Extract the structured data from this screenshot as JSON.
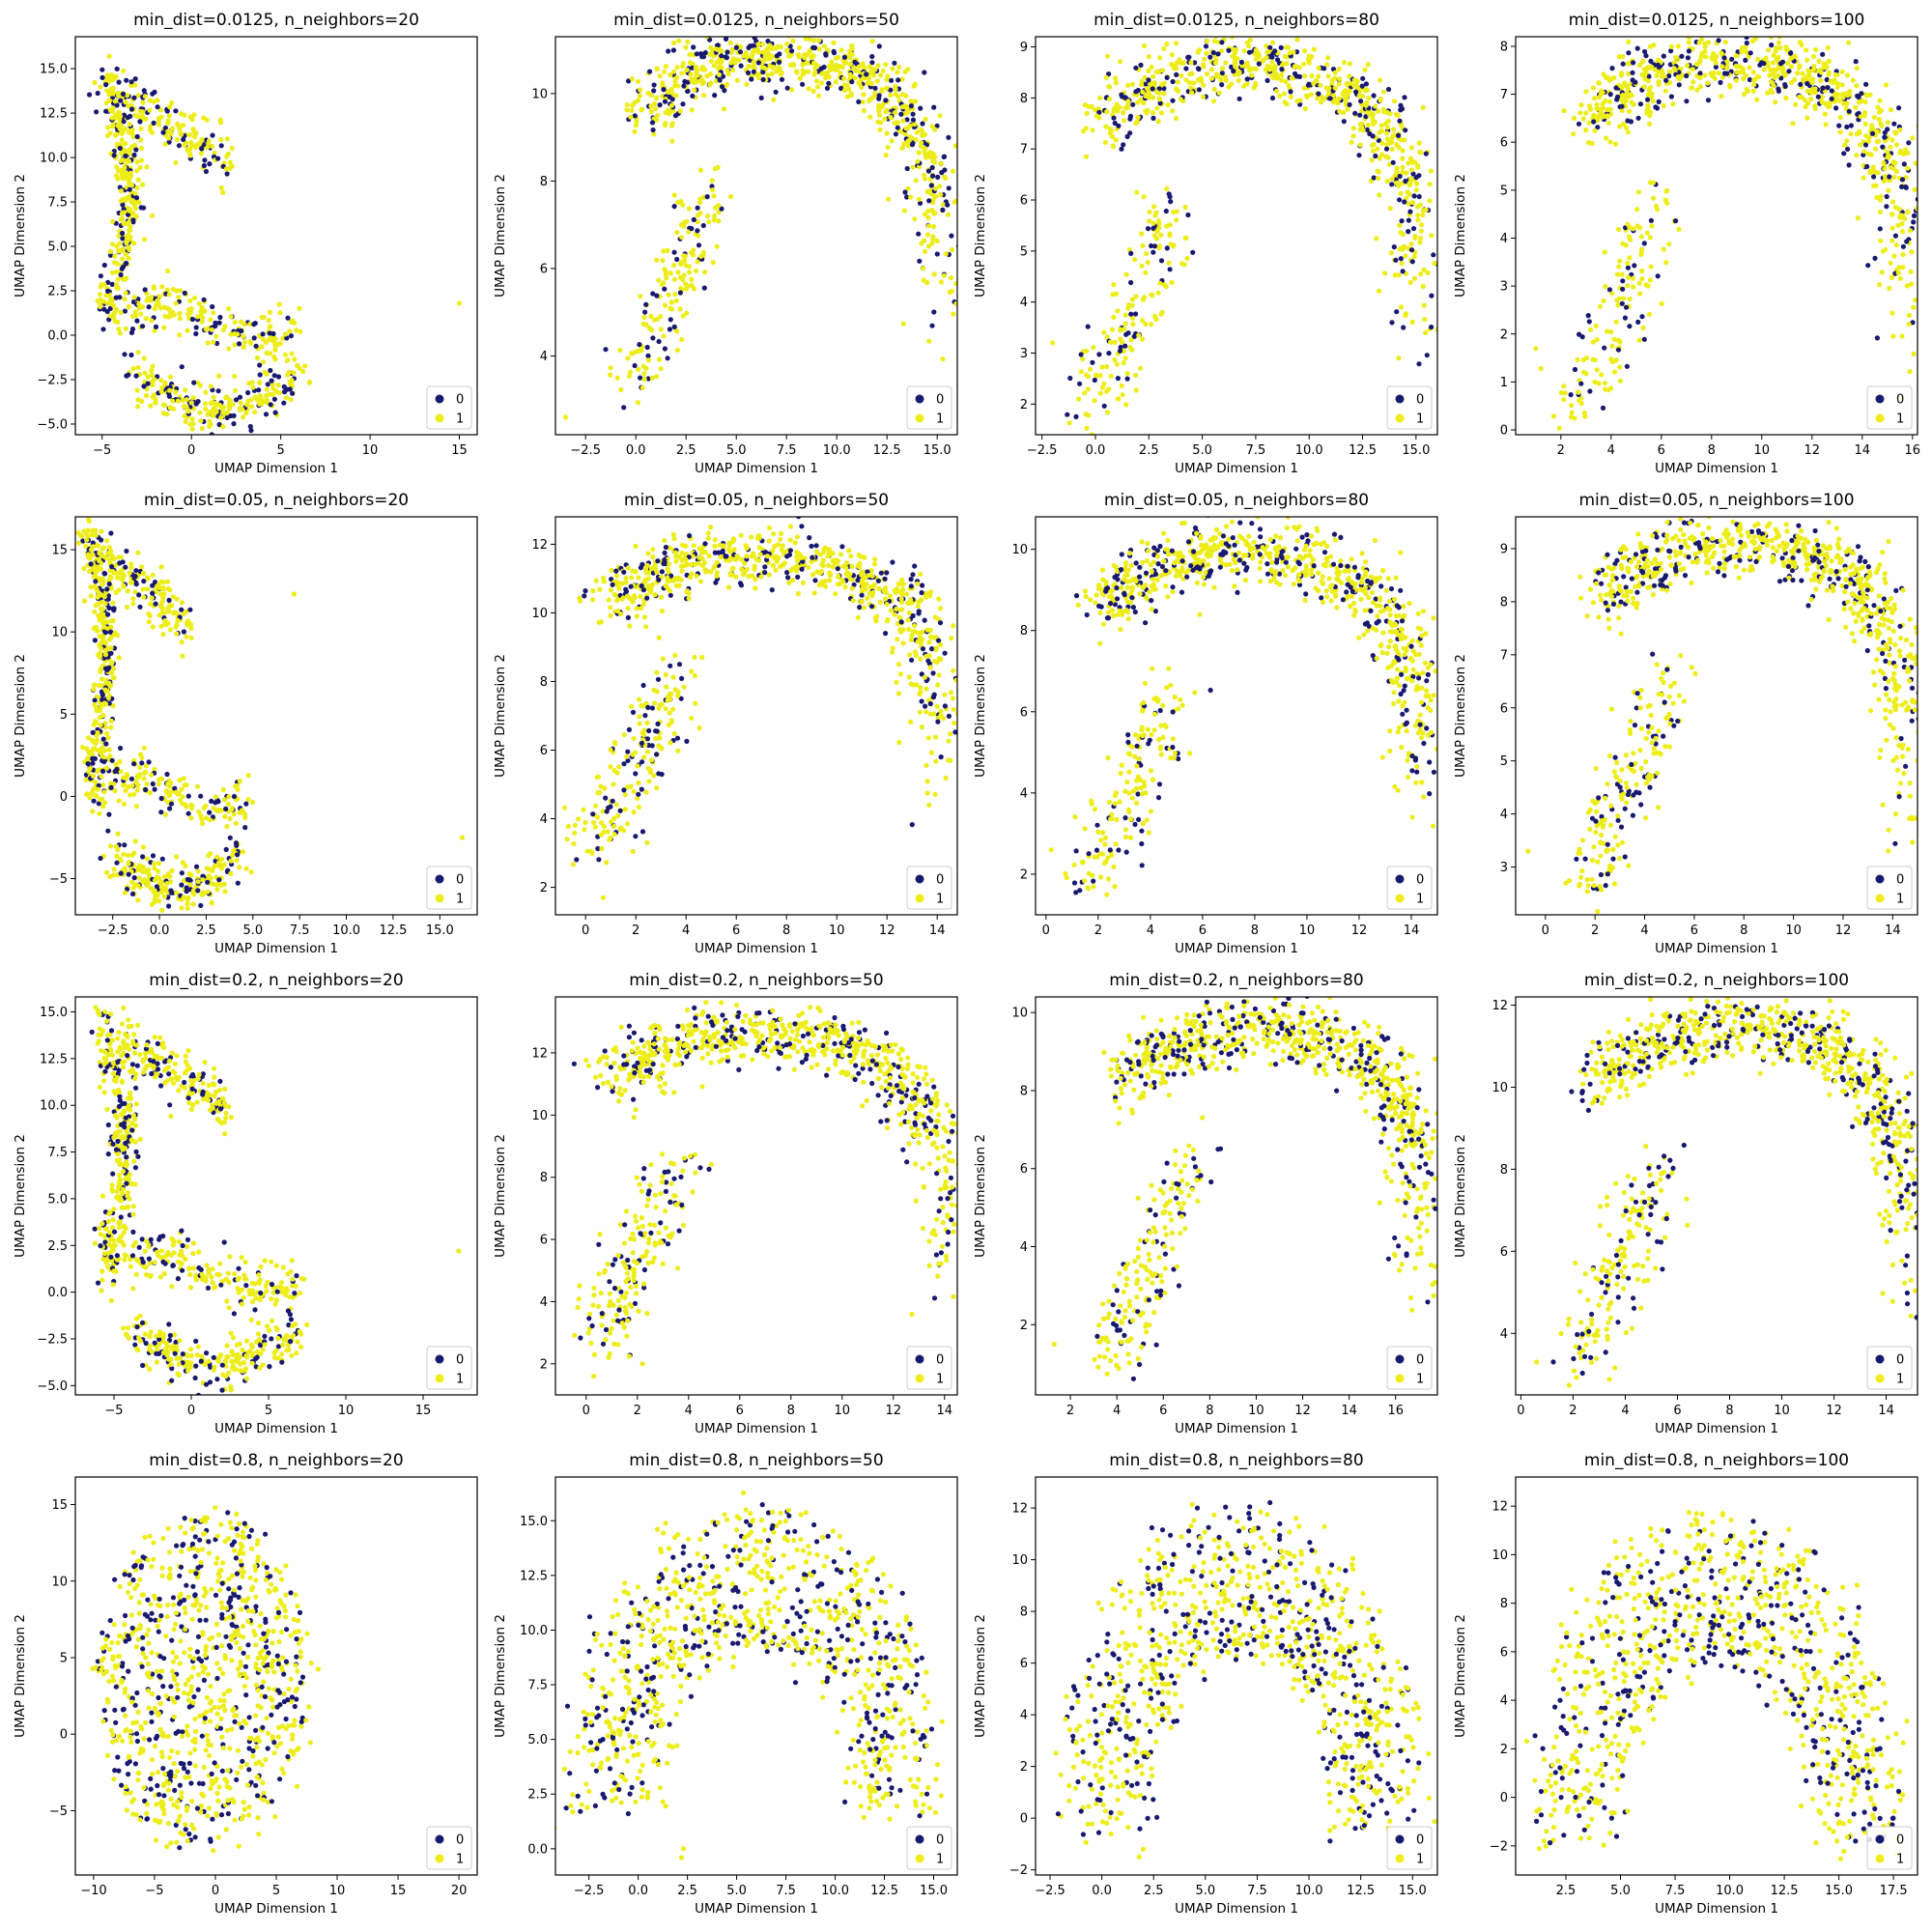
{
  "colors": {
    "class0": "#191970",
    "class1": "#eded1a"
  },
  "chart_data": [
    {
      "type": "scatter",
      "title": "min_dist=0.0125, n_neighbors=20",
      "xlabel": "UMAP Dimension 1",
      "ylabel": "UMAP Dimension 2",
      "xlim": [
        -6.5,
        16.0
      ],
      "ylim": [
        -5.6,
        16.8
      ],
      "xticks": [
        -5,
        0,
        5,
        10,
        15
      ],
      "yticks": [
        -5.0,
        -2.5,
        0.0,
        2.5,
        5.0,
        7.5,
        10.0,
        12.5,
        15.0
      ],
      "xtick_labels": [
        "−5",
        "0",
        "5",
        "10",
        "15"
      ],
      "ytick_labels": [
        "−5.0",
        "−2.5",
        "0.0",
        "2.5",
        "5.0",
        "7.5",
        "10.0",
        "12.5",
        "15.0"
      ],
      "legend": {
        "position": "lower right",
        "entries": [
          "0",
          "1"
        ]
      },
      "shape": {
        "kind": "c",
        "params": [
          -5,
          6,
          -4.5,
          14.5
        ]
      },
      "outliers": [
        [
          15.0,
          1.8
        ],
        [
          -4.6,
          15.7
        ]
      ]
    },
    {
      "type": "scatter",
      "title": "min_dist=0.0125, n_neighbors=50",
      "xlabel": "UMAP Dimension 1",
      "ylabel": "UMAP Dimension 2",
      "xlim": [
        -4.0,
        16.0
      ],
      "ylim": [
        2.2,
        11.3
      ],
      "xticks": [
        -2.5,
        0.0,
        2.5,
        5.0,
        7.5,
        10.0,
        12.5,
        15.0
      ],
      "yticks": [
        4,
        6,
        8,
        10
      ],
      "xtick_labels": [
        "−2.5",
        "0.0",
        "2.5",
        "5.0",
        "7.5",
        "10.0",
        "12.5",
        "15.0"
      ],
      "ytick_labels": [
        "4",
        "6",
        "8",
        "10"
      ],
      "legend": {
        "position": "lower right",
        "entries": [
          "0",
          "1"
        ]
      },
      "shape": {
        "kind": "arch",
        "params": [
          -1,
          15,
          3,
          11
        ]
      },
      "outliers": [
        [
          -3.5,
          2.6
        ]
      ]
    },
    {
      "type": "scatter",
      "title": "min_dist=0.0125, n_neighbors=80",
      "xlabel": "UMAP Dimension 1",
      "ylabel": "UMAP Dimension 2",
      "xlim": [
        -2.8,
        16.0
      ],
      "ylim": [
        1.4,
        9.2
      ],
      "xticks": [
        -2.5,
        0.0,
        2.5,
        5.0,
        7.5,
        10.0,
        12.5,
        15.0
      ],
      "yticks": [
        2,
        3,
        4,
        5,
        6,
        7,
        8,
        9
      ],
      "xtick_labels": [
        "−2.5",
        "0.0",
        "2.5",
        "5.0",
        "7.5",
        "10.0",
        "12.5",
        "15.0"
      ],
      "ytick_labels": [
        "2",
        "3",
        "4",
        "5",
        "6",
        "7",
        "8",
        "9"
      ],
      "legend": {
        "position": "lower right",
        "entries": [
          "0",
          "1"
        ]
      },
      "shape": {
        "kind": "arch",
        "params": [
          -1,
          15,
          1.8,
          8.8
        ]
      },
      "outliers": [
        [
          -2.0,
          3.2
        ]
      ]
    },
    {
      "type": "scatter",
      "title": "min_dist=0.0125, n_neighbors=100",
      "xlabel": "UMAP Dimension 1",
      "ylabel": "UMAP Dimension 2",
      "xlim": [
        0.2,
        16.2
      ],
      "ylim": [
        -0.1,
        8.2
      ],
      "xticks": [
        2,
        4,
        6,
        8,
        10,
        12,
        14,
        16
      ],
      "yticks": [
        0,
        1,
        2,
        3,
        4,
        5,
        6,
        7,
        8
      ],
      "xtick_labels": [
        "2",
        "4",
        "6",
        "8",
        "10",
        "12",
        "14",
        "16"
      ],
      "ytick_labels": [
        "0",
        "1",
        "2",
        "3",
        "4",
        "5",
        "6",
        "7",
        "8"
      ],
      "legend": {
        "position": "lower right",
        "entries": [
          "0",
          "1"
        ]
      },
      "shape": {
        "kind": "arch",
        "params": [
          2,
          15.5,
          0.4,
          7.8
        ]
      },
      "outliers": [
        [
          1.0,
          1.7
        ]
      ]
    },
    {
      "type": "scatter",
      "title": "min_dist=0.05, n_neighbors=20",
      "xlabel": "UMAP Dimension 1",
      "ylabel": "UMAP Dimension 2",
      "xlim": [
        -4.5,
        17.0
      ],
      "ylim": [
        -7.2,
        17.0
      ],
      "xticks": [
        -2.5,
        0.0,
        2.5,
        5.0,
        7.5,
        10.0,
        12.5,
        15.0
      ],
      "yticks": [
        -5,
        0,
        5,
        10,
        15
      ],
      "xtick_labels": [
        "−2.5",
        "0.0",
        "2.5",
        "5.0",
        "7.5",
        "10.0",
        "12.5",
        "15.0"
      ],
      "ytick_labels": [
        "−5",
        "0",
        "5",
        "10",
        "15"
      ],
      "legend": {
        "position": "lower right",
        "entries": [
          "0",
          "1"
        ]
      },
      "shape": {
        "kind": "c",
        "params": [
          -4,
          4.5,
          -6,
          16
        ]
      },
      "outliers": [
        [
          16.2,
          -2.5
        ],
        [
          7.2,
          12.3
        ]
      ]
    },
    {
      "type": "scatter",
      "title": "min_dist=0.05, n_neighbors=50",
      "xlabel": "UMAP Dimension 1",
      "ylabel": "UMAP Dimension 2",
      "xlim": [
        -1.2,
        14.8
      ],
      "ylim": [
        1.2,
        12.8
      ],
      "xticks": [
        0,
        2,
        4,
        6,
        8,
        10,
        12,
        14
      ],
      "yticks": [
        2,
        4,
        6,
        8,
        10,
        12
      ],
      "xtick_labels": [
        "0",
        "2",
        "4",
        "6",
        "8",
        "10",
        "12",
        "14"
      ],
      "ytick_labels": [
        "2",
        "4",
        "6",
        "8",
        "10",
        "12"
      ],
      "legend": {
        "position": "lower right",
        "entries": [
          "0",
          "1"
        ]
      },
      "shape": {
        "kind": "arch",
        "params": [
          -0.5,
          14,
          3,
          11.8
        ]
      },
      "outliers": [
        [
          0.7,
          1.7
        ]
      ]
    },
    {
      "type": "scatter",
      "title": "min_dist=0.05, n_neighbors=80",
      "xlabel": "UMAP Dimension 1",
      "ylabel": "UMAP Dimension 2",
      "xlim": [
        -0.4,
        15.0
      ],
      "ylim": [
        1.0,
        10.8
      ],
      "xticks": [
        0,
        2,
        4,
        6,
        8,
        10,
        12,
        14
      ],
      "yticks": [
        2,
        4,
        6,
        8,
        10
      ],
      "xtick_labels": [
        "0",
        "2",
        "4",
        "6",
        "8",
        "10",
        "12",
        "14"
      ],
      "ytick_labels": [
        "2",
        "4",
        "6",
        "8",
        "10"
      ],
      "legend": {
        "position": "lower right",
        "entries": [
          "0",
          "1"
        ]
      },
      "shape": {
        "kind": "arch",
        "params": [
          1,
          14.2,
          1.7,
          10.1
        ]
      },
      "outliers": [
        [
          0.2,
          2.6
        ]
      ]
    },
    {
      "type": "scatter",
      "title": "min_dist=0.05, n_neighbors=100",
      "xlabel": "UMAP Dimension 1",
      "ylabel": "UMAP Dimension 2",
      "xlim": [
        -1.2,
        15.0
      ],
      "ylim": [
        2.1,
        9.6
      ],
      "xticks": [
        0,
        2,
        4,
        6,
        8,
        10,
        12,
        14
      ],
      "yticks": [
        3,
        4,
        5,
        6,
        7,
        8,
        9
      ],
      "xtick_labels": [
        "0",
        "2",
        "4",
        "6",
        "8",
        "10",
        "12",
        "14"
      ],
      "ytick_labels": [
        "3",
        "4",
        "5",
        "6",
        "7",
        "8",
        "9"
      ],
      "legend": {
        "position": "lower right",
        "entries": [
          "0",
          "1"
        ]
      },
      "shape": {
        "kind": "arch",
        "params": [
          1,
          14.5,
          2.6,
          9.2
        ]
      },
      "outliers": [
        [
          -0.7,
          3.3
        ]
      ]
    },
    {
      "type": "scatter",
      "title": "min_dist=0.2, n_neighbors=20",
      "xlabel": "UMAP Dimension 1",
      "ylabel": "UMAP Dimension 2",
      "xlim": [
        -7.5,
        18.5
      ],
      "ylim": [
        -5.5,
        15.8
      ],
      "xticks": [
        -5,
        0,
        5,
        10,
        15
      ],
      "yticks": [
        -5.0,
        -2.5,
        0.0,
        2.5,
        5.0,
        7.5,
        10.0,
        12.5,
        15.0
      ],
      "xtick_labels": [
        "−5",
        "0",
        "5",
        "10",
        "15"
      ],
      "ytick_labels": [
        "−5.0",
        "−2.5",
        "0.0",
        "2.5",
        "5.0",
        "7.5",
        "10.0",
        "12.5",
        "15.0"
      ],
      "legend": {
        "position": "lower right",
        "entries": [
          "0",
          "1"
        ]
      },
      "shape": {
        "kind": "c",
        "params": [
          -6,
          7,
          -4.2,
          14.5
        ]
      },
      "outliers": [
        [
          17.3,
          2.2
        ]
      ]
    },
    {
      "type": "scatter",
      "title": "min_dist=0.2, n_neighbors=50",
      "xlabel": "UMAP Dimension 1",
      "ylabel": "UMAP Dimension 2",
      "xlim": [
        -1.2,
        14.5
      ],
      "ylim": [
        1.0,
        13.8
      ],
      "xticks": [
        0,
        2,
        4,
        6,
        8,
        10,
        12,
        14
      ],
      "yticks": [
        2,
        4,
        6,
        8,
        10,
        12
      ],
      "xtick_labels": [
        "0",
        "2",
        "4",
        "6",
        "8",
        "10",
        "12",
        "14"
      ],
      "ytick_labels": [
        "2",
        "4",
        "6",
        "8",
        "10",
        "12"
      ],
      "legend": {
        "position": "lower right",
        "entries": [
          "0",
          "1"
        ]
      },
      "shape": {
        "kind": "arch",
        "params": [
          -0.5,
          14,
          2.6,
          12.8
        ]
      },
      "outliers": [
        [
          0.3,
          1.6
        ]
      ]
    },
    {
      "type": "scatter",
      "title": "min_dist=0.2, n_neighbors=80",
      "xlabel": "UMAP Dimension 1",
      "ylabel": "UMAP Dimension 2",
      "xlim": [
        0.5,
        17.8
      ],
      "ylim": [
        0.2,
        10.4
      ],
      "xticks": [
        2,
        4,
        6,
        8,
        10,
        12,
        14,
        16
      ],
      "yticks": [
        2,
        4,
        6,
        8,
        10
      ],
      "xtick_labels": [
        "2",
        "4",
        "6",
        "8",
        "10",
        "12",
        "14",
        "16"
      ],
      "ytick_labels": [
        "2",
        "4",
        "6",
        "8",
        "10"
      ],
      "legend": {
        "position": "lower right",
        "entries": [
          "0",
          "1"
        ]
      },
      "shape": {
        "kind": "arch",
        "params": [
          3,
          17,
          0.9,
          9.8
        ]
      },
      "outliers": [
        [
          1.3,
          1.5
        ]
      ]
    },
    {
      "type": "scatter",
      "title": "min_dist=0.2, n_neighbors=100",
      "xlabel": "UMAP Dimension 1",
      "ylabel": "UMAP Dimension 2",
      "xlim": [
        -0.2,
        15.2
      ],
      "ylim": [
        2.5,
        12.2
      ],
      "xticks": [
        0,
        2,
        4,
        6,
        8,
        10,
        12,
        14
      ],
      "yticks": [
        4,
        6,
        8,
        10,
        12
      ],
      "xtick_labels": [
        "0",
        "2",
        "4",
        "6",
        "8",
        "10",
        "12",
        "14"
      ],
      "ytick_labels": [
        "4",
        "6",
        "8",
        "10",
        "12"
      ],
      "legend": {
        "position": "lower right",
        "entries": [
          "0",
          "1"
        ]
      },
      "shape": {
        "kind": "arch",
        "params": [
          1.5,
          14.8,
          3,
          11.6
        ]
      },
      "outliers": [
        [
          0.6,
          3.3
        ]
      ]
    },
    {
      "type": "scatter",
      "title": "min_dist=0.8, n_neighbors=20",
      "xlabel": "UMAP Dimension 1",
      "ylabel": "UMAP Dimension 2",
      "xlim": [
        -11.5,
        21.5
      ],
      "ylim": [
        -9.2,
        16.8
      ],
      "xticks": [
        -10,
        -5,
        0,
        5,
        10,
        15,
        20
      ],
      "yticks": [
        -5,
        0,
        5,
        10,
        15
      ],
      "xtick_labels": [
        "−10",
        "−5",
        "0",
        "5",
        "10",
        "15",
        "20"
      ],
      "ytick_labels": [
        "−5",
        "0",
        "5",
        "10",
        "15"
      ],
      "legend": {
        "position": "lower right",
        "entries": [
          "0",
          "1"
        ]
      },
      "shape": {
        "kind": "blob",
        "params": [
          -10,
          8,
          -8,
          15
        ]
      },
      "outliers": []
    },
    {
      "type": "scatter",
      "title": "min_dist=0.8, n_neighbors=50",
      "xlabel": "UMAP Dimension 1",
      "ylabel": "UMAP Dimension 2",
      "xlim": [
        -4.2,
        16.2
      ],
      "ylim": [
        -1.2,
        17.0
      ],
      "xticks": [
        -2.5,
        0.0,
        2.5,
        5.0,
        7.5,
        10.0,
        12.5,
        15.0
      ],
      "yticks": [
        0.0,
        2.5,
        5.0,
        7.5,
        10.0,
        12.5,
        15.0
      ],
      "xtick_labels": [
        "−2.5",
        "0.0",
        "2.5",
        "5.0",
        "7.5",
        "10.0",
        "12.5",
        "15.0"
      ],
      "ytick_labels": [
        "0.0",
        "2.5",
        "5.0",
        "7.5",
        "10.0",
        "12.5",
        "15.0"
      ],
      "legend": {
        "position": "lower right",
        "entries": [
          "0",
          "1"
        ]
      },
      "shape": {
        "kind": "dome",
        "params": [
          -3.5,
          15.5,
          1.2,
          16
        ]
      },
      "outliers": [
        [
          2.2,
          -0.4
        ],
        [
          2.3,
          0.0
        ]
      ]
    },
    {
      "type": "scatter",
      "title": "min_dist=0.8, n_neighbors=80",
      "xlabel": "UMAP Dimension 1",
      "ylabel": "UMAP Dimension 2",
      "xlim": [
        -3.2,
        16.2
      ],
      "ylim": [
        -2.2,
        13.2
      ],
      "xticks": [
        -2.5,
        0.0,
        2.5,
        5.0,
        7.5,
        10.0,
        12.5,
        15.0
      ],
      "yticks": [
        -2,
        0,
        2,
        4,
        6,
        8,
        10,
        12
      ],
      "xtick_labels": [
        "−2.5",
        "0.0",
        "2.5",
        "5.0",
        "7.5",
        "10.0",
        "12.5",
        "15.0"
      ],
      "ytick_labels": [
        "−2",
        "0",
        "2",
        "4",
        "6",
        "8",
        "10",
        "12"
      ],
      "legend": {
        "position": "lower right",
        "entries": [
          "0",
          "1"
        ]
      },
      "shape": {
        "kind": "dome",
        "params": [
          -2,
          15.5,
          -1,
          12.3
        ]
      },
      "outliers": [
        [
          2.0,
          -1.2
        ],
        [
          1.8,
          -1.5
        ]
      ]
    },
    {
      "type": "scatter",
      "title": "min_dist=0.8, n_neighbors=100",
      "xlabel": "UMAP Dimension 1",
      "ylabel": "UMAP Dimension 2",
      "xlim": [
        0.2,
        18.6
      ],
      "ylim": [
        -3.2,
        13.2
      ],
      "xticks": [
        2.5,
        5.0,
        7.5,
        10.0,
        12.5,
        15.0,
        17.5
      ],
      "yticks": [
        -2,
        0,
        2,
        4,
        6,
        8,
        10,
        12
      ],
      "xtick_labels": [
        "2.5",
        "5.0",
        "7.5",
        "10.0",
        "12.5",
        "15.0",
        "17.5"
      ],
      "ytick_labels": [
        "−2",
        "0",
        "2",
        "4",
        "6",
        "8",
        "10",
        "12"
      ],
      "legend": {
        "position": "lower right",
        "entries": [
          "0",
          "1"
        ]
      },
      "shape": {
        "kind": "dome",
        "params": [
          1,
          18,
          -2.5,
          12.1
        ]
      },
      "outliers": [
        [
          1.5,
          -1.8
        ]
      ]
    }
  ]
}
